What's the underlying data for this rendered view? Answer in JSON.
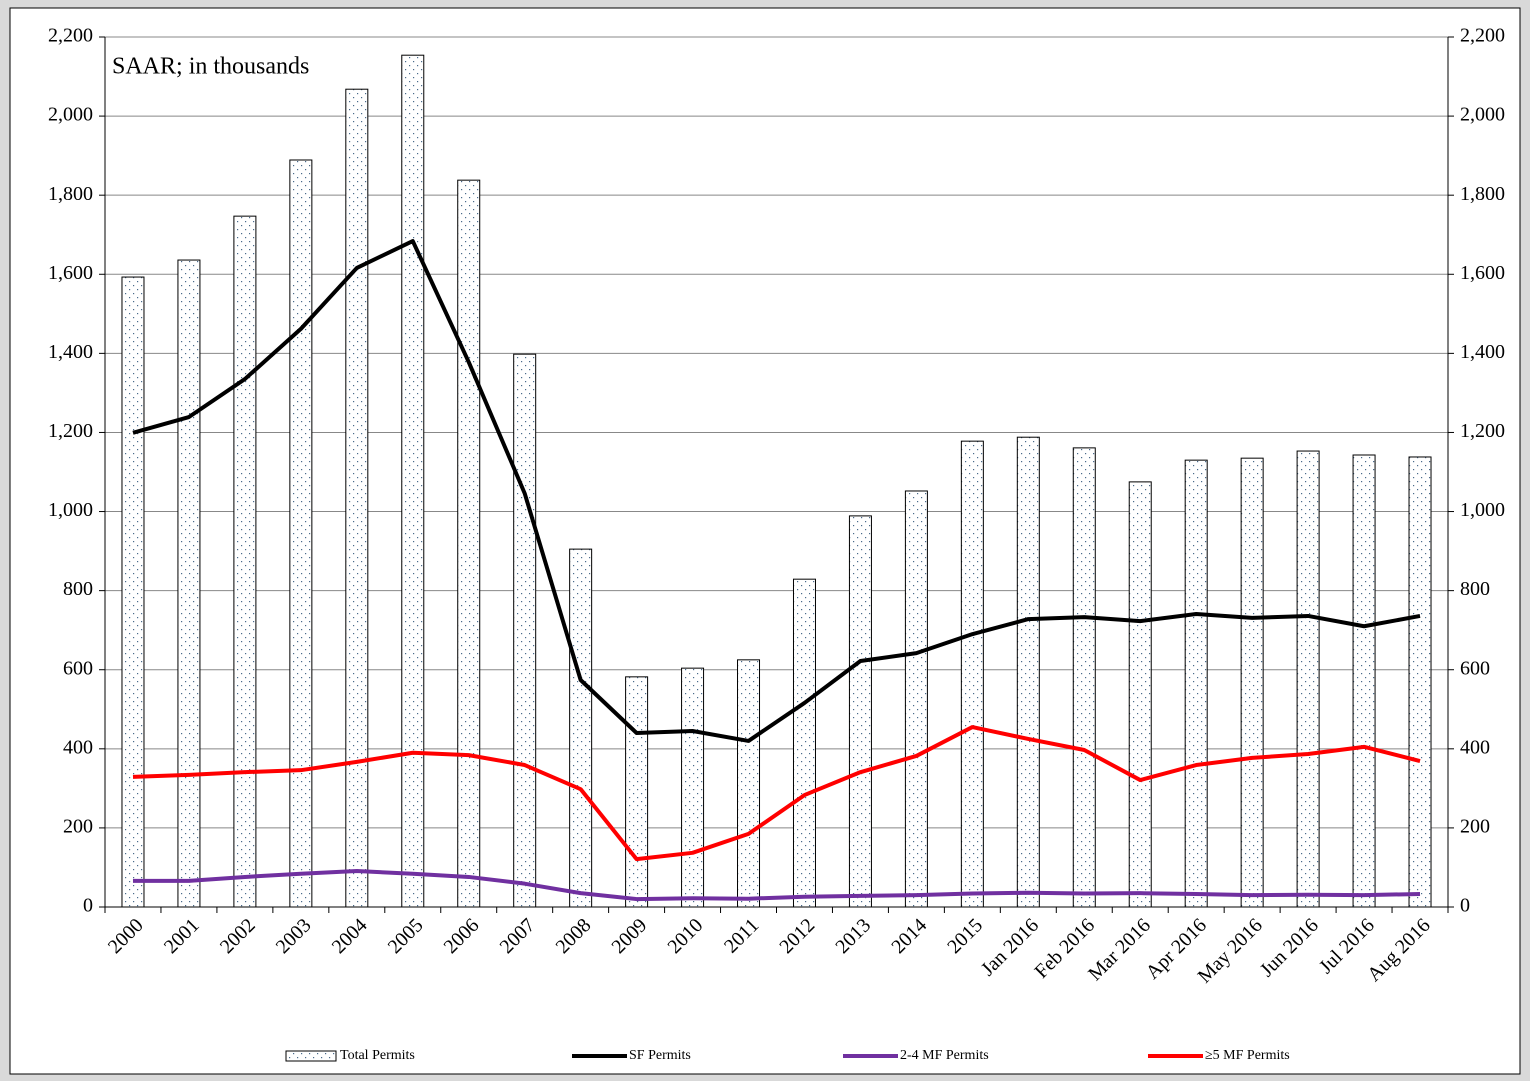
{
  "chart_data": {
    "type": "bar",
    "annotation": "SAAR; in thousands",
    "categories": [
      "2000",
      "2001",
      "2002",
      "2003",
      "2004",
      "2005",
      "2006",
      "2007",
      "2008",
      "2009",
      "2010",
      "2011",
      "2012",
      "2013",
      "2014",
      "2015",
      "Jan 2016",
      "Feb 2016",
      "Mar 2016",
      "Apr 2016",
      "May 2016",
      "Jun 2016",
      "Jul 2016",
      "Aug 2016"
    ],
    "series": [
      {
        "name": "Total Permits",
        "type": "bar",
        "color": "#ffffff",
        "values": [
          1593,
          1636,
          1747,
          1889,
          2068,
          2154,
          1838,
          1398,
          905,
          582,
          604,
          625,
          829,
          989,
          1052,
          1178,
          1188,
          1161,
          1075,
          1130,
          1135,
          1153,
          1143,
          1138
        ]
      },
      {
        "name": "SF Permits",
        "type": "line",
        "color": "#000000",
        "values": [
          1199,
          1239,
          1335,
          1462,
          1616,
          1684,
          1378,
          1046,
          574,
          440,
          445,
          420,
          516,
          622,
          642,
          690,
          728,
          733,
          723,
          741,
          731,
          736,
          710,
          736
        ]
      },
      {
        "name": "2-4 MF Permits",
        "type": "line",
        "color": "#7030a0",
        "values": [
          66,
          66,
          76,
          84,
          91,
          84,
          76,
          59,
          35,
          20,
          22,
          21,
          26,
          28,
          30,
          34,
          36,
          34,
          35,
          33,
          30,
          31,
          30,
          33
        ]
      },
      {
        "name": "≥5 MF Permits",
        "type": "line",
        "color": "#ff0000",
        "values": [
          329,
          334,
          341,
          346,
          367,
          390,
          384,
          359,
          298,
          121,
          137,
          185,
          283,
          341,
          382,
          455,
          425,
          397,
          321,
          359,
          377,
          387,
          405,
          369
        ]
      }
    ],
    "ylim": [
      0,
      2200
    ],
    "yticks": [
      0,
      200,
      400,
      600,
      800,
      {
        "value": 1000,
        "label": "1,000"
      },
      {
        "value": 1200,
        "label": "1,200"
      },
      {
        "value": 1400,
        "label": "1,400"
      },
      {
        "value": 1600,
        "label": "1,600"
      },
      {
        "value": 1800,
        "label": "1,800"
      },
      {
        "value": 2000,
        "label": "2,000"
      },
      {
        "value": 2200,
        "label": "2,200"
      }
    ],
    "y2lim": [
      0,
      2200
    ],
    "y2ticks": [
      0,
      200,
      400,
      600,
      800,
      {
        "value": 1000,
        "label": "1,000"
      },
      {
        "value": 1200,
        "label": "1,200"
      },
      {
        "value": 1400,
        "label": "1,400"
      },
      {
        "value": 1600,
        "label": "1,600"
      },
      {
        "value": 1800,
        "label": "1,800"
      },
      {
        "value": 2000,
        "label": "2,000"
      },
      {
        "value": 2200,
        "label": "2,200"
      }
    ],
    "grid": true,
    "legend": "bottom"
  }
}
